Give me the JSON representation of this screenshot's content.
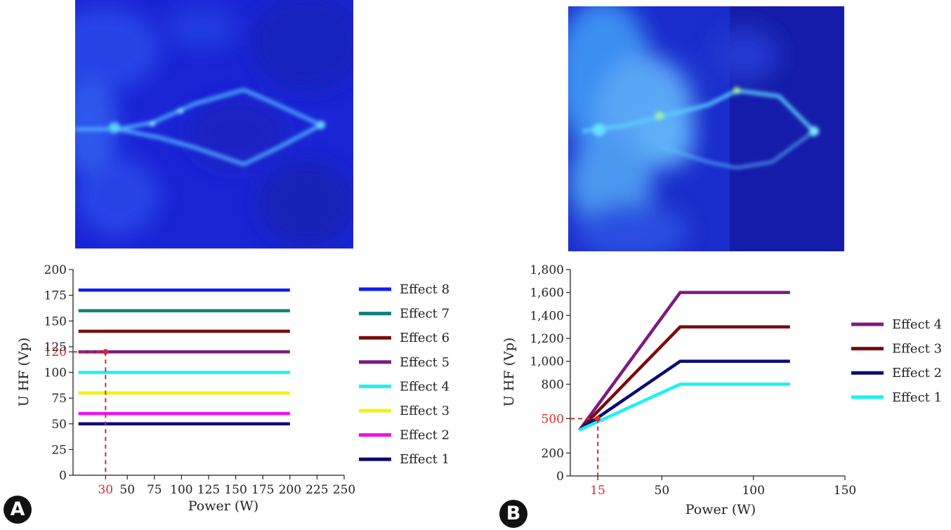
{
  "panels": [
    {
      "label": "A"
    },
    {
      "label": "B"
    }
  ],
  "chart_data": [
    {
      "type": "line",
      "xlabel": "Power (W)",
      "ylabel": "U HF (Vp)",
      "xlim": [
        0,
        250
      ],
      "ylim": [
        0,
        200
      ],
      "x_ticks": [
        "30",
        "50",
        "75",
        "100",
        "125",
        "150",
        "175",
        "200",
        "225",
        "250"
      ],
      "x_tick_values": [
        30,
        50,
        75,
        100,
        125,
        150,
        175,
        200,
        225,
        250
      ],
      "y_ticks": [
        "0",
        "25",
        "50",
        "75",
        "100",
        "120",
        "125",
        "150",
        "175",
        "200"
      ],
      "y_tick_values": [
        0,
        25,
        50,
        75,
        100,
        120,
        125,
        150,
        175,
        200
      ],
      "highlight_ticks": {
        "x": "30",
        "y": "120"
      },
      "reference_point": {
        "x": 30,
        "y": 120
      },
      "legend_position": "right",
      "series": [
        {
          "name": "Effect 8",
          "color": "#0a1ff0",
          "points": [
            [
              5,
              180
            ],
            [
              200,
              180
            ]
          ]
        },
        {
          "name": "Effect 7",
          "color": "#0f7f7a",
          "points": [
            [
              5,
              160
            ],
            [
              200,
              160
            ]
          ]
        },
        {
          "name": "Effect 6",
          "color": "#7a0b0b",
          "points": [
            [
              5,
              140
            ],
            [
              200,
              140
            ]
          ]
        },
        {
          "name": "Effect 5",
          "color": "#7d1a82",
          "points": [
            [
              5,
              120
            ],
            [
              200,
              120
            ]
          ]
        },
        {
          "name": "Effect 4",
          "color": "#19f2f2",
          "points": [
            [
              5,
              100
            ],
            [
              200,
              100
            ]
          ]
        },
        {
          "name": "Effect 3",
          "color": "#f2f20a",
          "points": [
            [
              5,
              80
            ],
            [
              200,
              80
            ]
          ]
        },
        {
          "name": "Effect 2",
          "color": "#f20ff2",
          "points": [
            [
              5,
              60
            ],
            [
              200,
              60
            ]
          ]
        },
        {
          "name": "Effect 1",
          "color": "#0a0a7a",
          "points": [
            [
              5,
              50
            ],
            [
              200,
              50
            ]
          ]
        }
      ]
    },
    {
      "type": "line",
      "xlabel": "Power (W)",
      "ylabel": "U HF (Vp)",
      "xlim": [
        0,
        150
      ],
      "ylim": [
        0,
        1800
      ],
      "x_ticks": [
        "15",
        "50",
        "100",
        "150"
      ],
      "x_tick_values": [
        15,
        50,
        100,
        150
      ],
      "y_ticks": [
        "0",
        "200",
        "500",
        "800",
        "1,000",
        "1,200",
        "1,400",
        "1,600",
        "1,800"
      ],
      "y_tick_values": [
        0,
        200,
        500,
        800,
        1000,
        1200,
        1400,
        1600,
        1800
      ],
      "highlight_ticks": {
        "x": "15",
        "y": "500"
      },
      "reference_point": {
        "x": 15,
        "y": 500
      },
      "legend_position": "right",
      "series": [
        {
          "name": "Effect 4",
          "color": "#7d1a82",
          "points": [
            [
              5,
              400
            ],
            [
              60,
              1600
            ],
            [
              120,
              1600
            ]
          ]
        },
        {
          "name": "Effect 3",
          "color": "#7a0b0b",
          "points": [
            [
              5,
              400
            ],
            [
              60,
              1300
            ],
            [
              120,
              1300
            ]
          ]
        },
        {
          "name": "Effect 2",
          "color": "#0a0a7a",
          "points": [
            [
              5,
              400
            ],
            [
              60,
              1000
            ],
            [
              120,
              1000
            ]
          ]
        },
        {
          "name": "Effect 1",
          "color": "#19f2f2",
          "points": [
            [
              5,
              400
            ],
            [
              60,
              800
            ],
            [
              120,
              800
            ]
          ]
        }
      ]
    }
  ]
}
